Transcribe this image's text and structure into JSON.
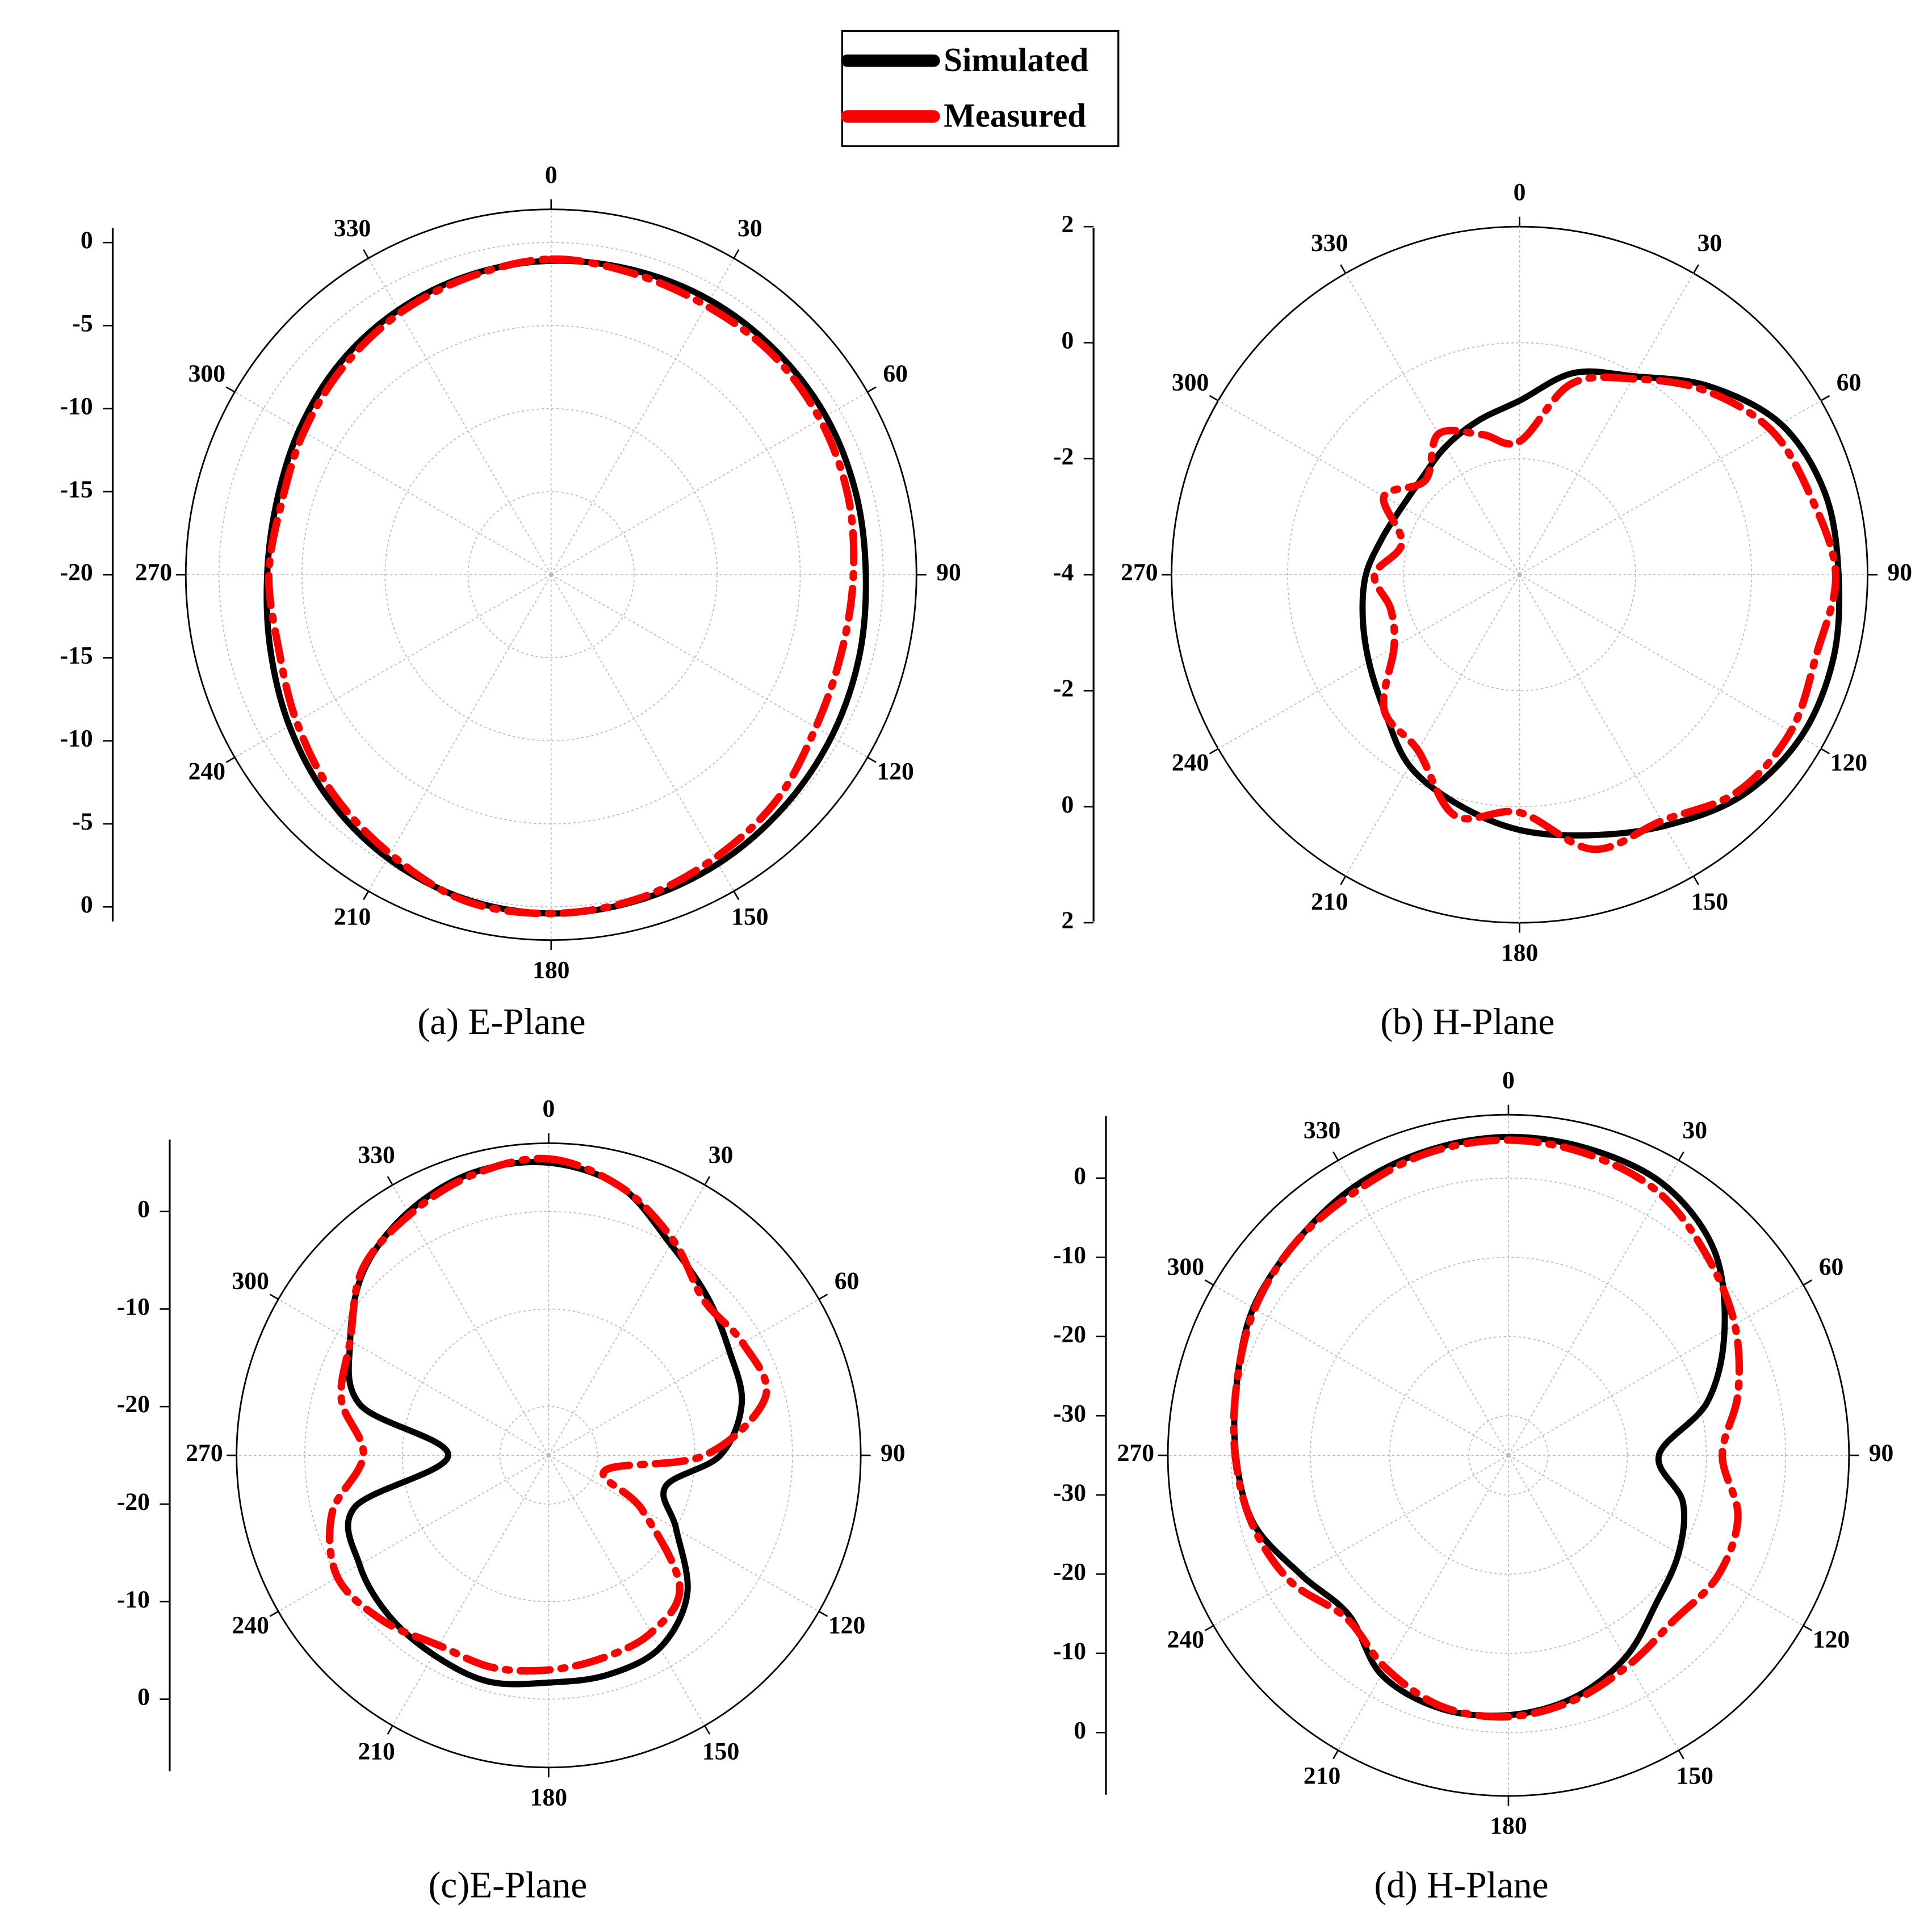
{
  "chart_data": [
    {
      "type": "polar",
      "caption": "(a) E-Plane",
      "grid": true,
      "theta": [
        0,
        15,
        30,
        45,
        60,
        75,
        90,
        105,
        120,
        135,
        150,
        165,
        180,
        195,
        210,
        225,
        240,
        255,
        270,
        285,
        300,
        315,
        330,
        345
      ],
      "thetaticks": [
        0,
        30,
        60,
        90,
        120,
        150,
        180,
        210,
        240,
        270,
        300,
        330
      ],
      "rlim": [
        -20,
        2
      ],
      "rticks": [
        0,
        -5,
        -10,
        -15,
        -20
      ],
      "series": [
        {
          "name": "Simulated",
          "color": "#000000",
          "dash": "solid",
          "values": [
            -1.1,
            -1.0,
            -0.9,
            -0.9,
            -0.9,
            -1.0,
            -1.05,
            -0.8,
            -0.5,
            -0.2,
            0.1,
            0.3,
            0.4,
            0.2,
            -0.3,
            -1.0,
            -1.8,
            -2.5,
            -2.9,
            -2.9,
            -2.5,
            -2.0,
            -1.6,
            -1.3
          ]
        },
        {
          "name": "Measured",
          "color": "#ff0000",
          "dash": "dashdot",
          "values": [
            -1.0,
            -1.2,
            -1.3,
            -1.2,
            -1.3,
            -1.5,
            -1.8,
            -1.9,
            -1.6,
            -0.8,
            -0.3,
            0.2,
            0.4,
            0.3,
            -0.6,
            -1.4,
            -2.3,
            -3.0,
            -3.0,
            -3.2,
            -2.8,
            -2.3,
            -1.8,
            -1.4
          ]
        }
      ]
    },
    {
      "type": "polar",
      "caption": "(b) H-Plane",
      "grid": true,
      "theta": [
        0,
        15,
        30,
        45,
        60,
        75,
        90,
        105,
        120,
        135,
        150,
        165,
        180,
        195,
        210,
        225,
        240,
        255,
        270,
        285,
        300,
        315,
        330,
        345
      ],
      "thetaticks": [
        0,
        30,
        60,
        90,
        120,
        150,
        180,
        210,
        240,
        270,
        300,
        330
      ],
      "rlim": [
        -4,
        2
      ],
      "rticks": [
        2,
        0,
        -2,
        -4
      ],
      "series": [
        {
          "name": "Simulated",
          "color": "#000000",
          "dash": "solid",
          "values": [
            -1.0,
            -0.4,
            -0.05,
            0.6,
            1.2,
            1.45,
            1.5,
            1.6,
            1.6,
            1.4,
            1.0,
            0.65,
            0.4,
            0.1,
            -0.2,
            -0.7,
            -1.0,
            -1.2,
            -1.35,
            -1.55,
            -1.66,
            -1.63,
            -1.45,
            -1.25
          ]
        },
        {
          "name": "Measured",
          "color": "#ff0000",
          "dash": "dashdot",
          "values": [
            -1.7,
            -0.6,
            -0.1,
            0.5,
            1.0,
            1.2,
            1.45,
            1.3,
            1.4,
            1.3,
            0.9,
            0.9,
            0.1,
            0.3,
            -0.5,
            -0.7,
            -1.5,
            -1.7,
            -1.5,
            -1.9,
            -1.3,
            -1.7,
            -1.2,
            -1.5
          ]
        }
      ]
    },
    {
      "type": "polar",
      "caption": "(c)E-Plane",
      "grid": true,
      "theta": [
        0,
        15,
        30,
        45,
        60,
        75,
        90,
        105,
        120,
        135,
        150,
        165,
        180,
        195,
        210,
        225,
        240,
        255,
        270,
        285,
        300,
        315,
        330,
        345
      ],
      "thetaticks": [
        0,
        30,
        60,
        90,
        120,
        150,
        180,
        210,
        240,
        270,
        300,
        330
      ],
      "rlim": [
        -25,
        7
      ],
      "rticks": [
        0,
        -10,
        -20
      ],
      "series": [
        {
          "name": "Simulated",
          "color": "#000000",
          "dash": "solid",
          "values": [
            5.0,
            3.5,
            0.0,
            -2.0,
            -3.6,
            -4.5,
            -7.4,
            -12.6,
            -9.9,
            -4.9,
            -2.2,
            -1.7,
            -1.7,
            -1.0,
            -1.4,
            -1.8,
            -2.6,
            -4.4,
            -14.7,
            -5.0,
            -1.5,
            1.8,
            3.8,
            5.0
          ]
        },
        {
          "name": "Measured",
          "color": "#ff0000",
          "dash": "dashdot",
          "values": [
            5.4,
            3.5,
            0.5,
            -2.5,
            -2.0,
            -2.0,
            -9,
            -19,
            -14,
            -6,
            -4,
            -3.5,
            -3,
            -2.5,
            -2.5,
            -1,
            0,
            -2,
            -6,
            -3,
            -1.5,
            2.0,
            3.5,
            4.8
          ]
        }
      ]
    },
    {
      "type": "polar",
      "caption": "(d) H-Plane",
      "grid": true,
      "theta": [
        0,
        15,
        30,
        45,
        60,
        75,
        90,
        105,
        120,
        135,
        150,
        165,
        180,
        195,
        210,
        225,
        240,
        255,
        270,
        285,
        300,
        315,
        330,
        345
      ],
      "thetaticks": [
        0,
        30,
        60,
        90,
        120,
        150,
        180,
        210,
        240,
        270,
        300,
        330
      ],
      "rlim": [
        -35,
        8
      ],
      "rticks": [
        0,
        -10,
        -20,
        -30
      ],
      "series": [
        {
          "name": "Simulated",
          "color": "#000000",
          "dash": "solid",
          "values": [
            5.2,
            5.0,
            4.4,
            1.7,
            -3.5,
            -9,
            -16,
            -12.2,
            -10.2,
            -8.6,
            -5.5,
            -3.3,
            -2.2,
            -1.9,
            -3.0,
            -6.5,
            -4.8,
            -1.7,
            -0.6,
            0.5,
            2.2,
            3.0,
            4.1,
            4.8
          ]
        },
        {
          "name": "Measured",
          "color": "#ff0000",
          "dash": "dashdot",
          "values": [
            4.8,
            4.3,
            3.2,
            0.5,
            -2.0,
            -5,
            -8.0,
            -5.0,
            -4.5,
            -5.5,
            -4.5,
            -3.0,
            -2.0,
            -2.2,
            -4.0,
            -6.0,
            -3.2,
            -1.5,
            -0.5,
            0.5,
            2.0,
            3.0,
            3.5,
            4.5
          ]
        }
      ]
    }
  ]
}
